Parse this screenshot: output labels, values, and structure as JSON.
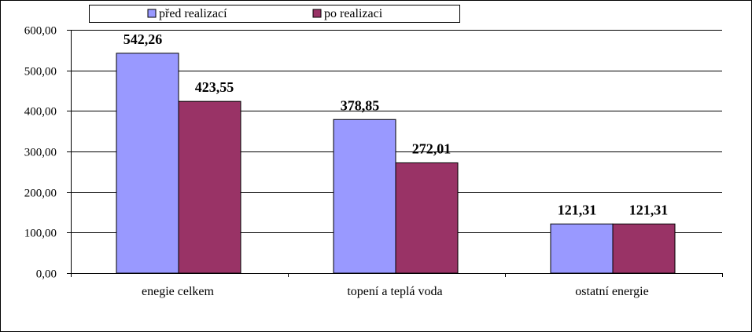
{
  "chart_data": {
    "type": "bar",
    "categories": [
      "enegie celkem",
      "topení a teplá voda",
      "ostatní energie"
    ],
    "series": [
      {
        "name": "před realizací",
        "values": [
          542.26,
          378.85,
          121.31
        ],
        "color": "#9999ff",
        "labels": [
          "542,26",
          "378,85",
          "121,31"
        ]
      },
      {
        "name": "po realizaci",
        "values": [
          423.55,
          272.01,
          121.31
        ],
        "color": "#993366",
        "labels": [
          "423,55",
          "272,01",
          "121,31"
        ]
      }
    ],
    "ylim": [
      0,
      600
    ],
    "yticks": [
      0,
      100,
      200,
      300,
      400,
      500,
      600
    ],
    "ytick_labels": [
      "0,00",
      "100,00",
      "200,00",
      "300,00",
      "400,00",
      "500,00",
      "600,00"
    ],
    "grid": true,
    "legend_position": "top"
  }
}
